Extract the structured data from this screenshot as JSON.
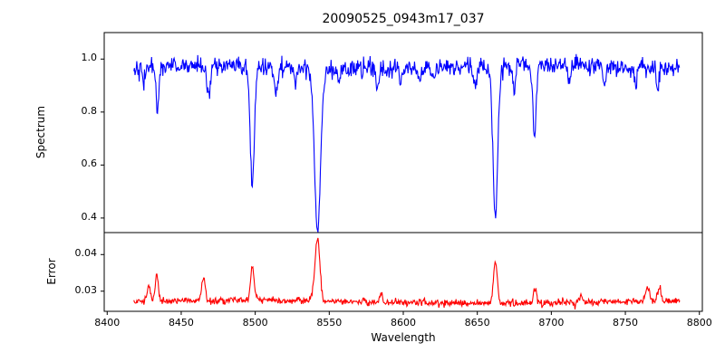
{
  "title": "20090525_0943m17_037",
  "axes": {
    "xlabel": "Wavelength",
    "spectrum_ylabel": "Spectrum",
    "error_ylabel": "Error"
  },
  "chart_data": [
    {
      "type": "line",
      "panel": "top",
      "title": "20090525_0943m17_037",
      "ylabel": "Spectrum",
      "xlabel": "",
      "legend": null,
      "grid": false,
      "line_color": "#0000ff",
      "xlim": [
        8398,
        8802
      ],
      "ylim": [
        0.345,
        1.1
      ],
      "x_ticks": [
        8400,
        8450,
        8500,
        8550,
        8600,
        8650,
        8700,
        8750,
        8800
      ],
      "y_ticks": [
        0.4,
        0.6,
        0.8,
        1.0
      ],
      "x_range": [
        8418,
        8787
      ],
      "sample_step": 0.4,
      "continuum_level": 0.968,
      "noise_sigma": 0.017,
      "wiggle_amp": 0.006,
      "wiggle_period": 37,
      "noise_seed": 42,
      "absorption_lines": [
        {
          "center": 8424.5,
          "depth": 0.07,
          "sigma": 0.9
        },
        {
          "center": 8433.8,
          "depth": 0.16,
          "sigma": 1.0
        },
        {
          "center": 8468.5,
          "depth": 0.13,
          "sigma": 1.0
        },
        {
          "center": 8498.0,
          "depth": 0.455,
          "sigma": 1.4
        },
        {
          "center": 8514.1,
          "depth": 0.09,
          "sigma": 0.9
        },
        {
          "center": 8527.0,
          "depth": 0.06,
          "sigma": 0.8
        },
        {
          "center": 8542.1,
          "depth": 0.61,
          "sigma": 2.0
        },
        {
          "center": 8556.8,
          "depth": 0.05,
          "sigma": 0.8
        },
        {
          "center": 8582.3,
          "depth": 0.08,
          "sigma": 0.9
        },
        {
          "center": 8598.0,
          "depth": 0.05,
          "sigma": 0.8
        },
        {
          "center": 8611.0,
          "depth": 0.06,
          "sigma": 0.8
        },
        {
          "center": 8621.0,
          "depth": 0.05,
          "sigma": 0.8
        },
        {
          "center": 8648.5,
          "depth": 0.08,
          "sigma": 0.9
        },
        {
          "center": 8662.2,
          "depth": 0.565,
          "sigma": 1.6
        },
        {
          "center": 8674.7,
          "depth": 0.1,
          "sigma": 0.9
        },
        {
          "center": 8688.6,
          "depth": 0.27,
          "sigma": 1.1
        },
        {
          "center": 8712.0,
          "depth": 0.06,
          "sigma": 0.8
        },
        {
          "center": 8736.0,
          "depth": 0.07,
          "sigma": 0.9
        },
        {
          "center": 8757.0,
          "depth": 0.06,
          "sigma": 0.8
        },
        {
          "center": 8772.0,
          "depth": 0.07,
          "sigma": 0.8
        }
      ]
    },
    {
      "type": "line",
      "panel": "bottom",
      "ylabel": "Error",
      "xlabel": "Wavelength",
      "legend": null,
      "grid": false,
      "line_color": "#ff0000",
      "xlim": [
        8398,
        8802
      ],
      "ylim": [
        0.0245,
        0.046
      ],
      "x_ticks": [
        8400,
        8450,
        8500,
        8550,
        8600,
        8650,
        8700,
        8750,
        8800
      ],
      "y_ticks": [
        0.03,
        0.04
      ],
      "x_range": [
        8418,
        8787
      ],
      "sample_step": 0.4,
      "baseline_level": 0.0271,
      "noise_sigma": 0.00045,
      "wiggle_amp": 0.0004,
      "wiggle_period": 55,
      "noise_seed": 1337,
      "peaks": [
        {
          "center": 8428.0,
          "amp": 0.004,
          "sigma": 1.2
        },
        {
          "center": 8433.5,
          "amp": 0.0075,
          "sigma": 1.0
        },
        {
          "center": 8465.0,
          "amp": 0.006,
          "sigma": 1.2
        },
        {
          "center": 8498.0,
          "amp": 0.0095,
          "sigma": 1.2
        },
        {
          "center": 8540.0,
          "amp": 0.004,
          "sigma": 1.5
        },
        {
          "center": 8542.3,
          "amp": 0.016,
          "sigma": 1.4
        },
        {
          "center": 8585.0,
          "amp": 0.002,
          "sigma": 1.0
        },
        {
          "center": 8662.2,
          "amp": 0.0115,
          "sigma": 1.3
        },
        {
          "center": 8689.0,
          "amp": 0.004,
          "sigma": 1.0
        },
        {
          "center": 8720.0,
          "amp": 0.0015,
          "sigma": 1.0
        },
        {
          "center": 8765.0,
          "amp": 0.0035,
          "sigma": 1.5
        },
        {
          "center": 8773.0,
          "amp": 0.0035,
          "sigma": 1.2
        }
      ]
    }
  ]
}
